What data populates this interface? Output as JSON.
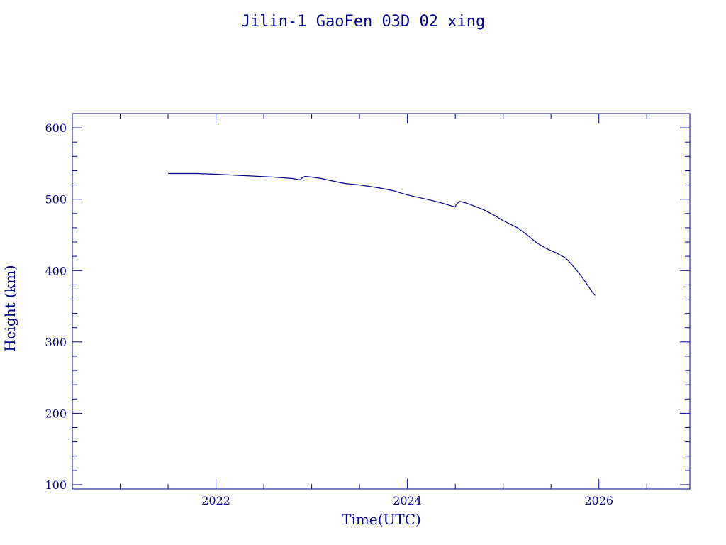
{
  "colors": {
    "ink": "#00008b",
    "background": "#ffffff"
  },
  "chart_data": {
    "type": "line",
    "title": "Jilin-1 GaoFen 03D 02 xing",
    "xlabel": "Time(UTC)",
    "ylabel": "Height (km)",
    "xlim": [
      2020.5,
      2026.95
    ],
    "ylim": [
      94,
      620
    ],
    "x_ticks": [
      2022,
      2024,
      2026
    ],
    "x_tick_labels": [
      "2022",
      "2024",
      "2026"
    ],
    "y_ticks": [
      100,
      200,
      300,
      400,
      500,
      600
    ],
    "y_tick_labels": [
      "100",
      "200",
      "300",
      "400",
      "500",
      "600"
    ],
    "grid": false,
    "legend": "none",
    "series": [
      {
        "x": [
          2021.5,
          2021.8,
          2022.0,
          2022.3,
          2022.6,
          2022.8,
          2022.88,
          2022.9,
          2022.93,
          2023.0,
          2023.1,
          2023.2,
          2023.35,
          2023.5,
          2023.7,
          2023.85,
          2024.0,
          2024.2,
          2024.35,
          2024.5,
          2024.51,
          2024.55,
          2024.65,
          2024.8,
          2024.9,
          2025.0,
          2025.15,
          2025.25,
          2025.35,
          2025.45,
          2025.55,
          2025.65,
          2025.72,
          2025.8,
          2025.88,
          2025.93,
          2025.96
        ],
        "y": [
          536,
          536,
          535,
          533,
          531,
          529,
          527,
          530,
          532,
          531,
          529,
          526,
          522,
          520,
          516,
          512,
          506,
          500,
          495,
          489,
          493,
          497,
          493,
          485,
          478,
          470,
          460,
          450,
          439,
          431,
          425,
          418,
          408,
          395,
          380,
          370,
          365
        ]
      }
    ]
  }
}
